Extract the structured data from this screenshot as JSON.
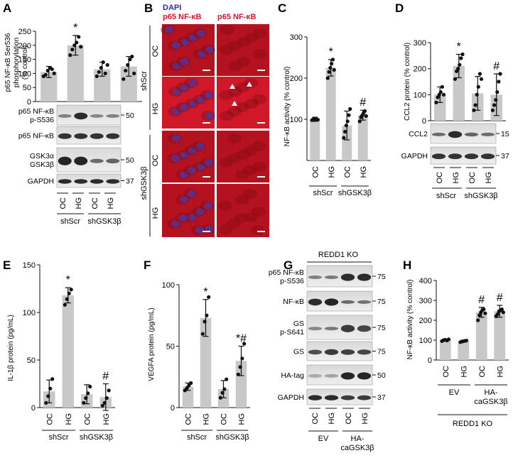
{
  "panels": {
    "A": {
      "letter": "A",
      "ylabel": [
        "p65 NF-κB Ser536",
        "phosphorylation",
        "(% control)"
      ],
      "yticks": [
        "0",
        "50",
        "100",
        "150",
        "200",
        "250"
      ],
      "star": "*",
      "chart_data": {
        "type": "bar",
        "categories": [
          "OC",
          "HG",
          "OC",
          "HG"
        ],
        "values": [
          105,
          200,
          115,
          125
        ],
        "errors": [
          20,
          35,
          25,
          35
        ],
        "ylim": [
          0,
          250
        ],
        "points": [
          [
            90,
            95,
            110,
            120,
            115,
            100
          ],
          [
            165,
            185,
            200,
            210,
            230,
            195
          ],
          [
            90,
            105,
            120,
            140,
            100,
            130
          ],
          [
            80,
            110,
            130,
            150,
            160,
            100
          ]
        ]
      },
      "blots": [
        {
          "label": [
            "p65 NF-κB",
            "p-S536"
          ],
          "mw": "50"
        },
        {
          "label": [
            "p65 NF-κB"
          ],
          "mw": ""
        },
        {
          "label": [
            "GSK3α",
            "GSK3β"
          ],
          "mw": "50"
        },
        {
          "label": [
            "GAPDH"
          ],
          "mw": "37"
        }
      ],
      "lanes": [
        "OC",
        "HG",
        "OC",
        "HG"
      ],
      "groups": [
        "shScr",
        "shGSK3β"
      ]
    },
    "B": {
      "letter": "B",
      "col1": [
        "DAPI",
        "p65 NF-κB"
      ],
      "col2": "p65 NF-κB",
      "rows": [
        "OC",
        "HG",
        "OC",
        "HG"
      ],
      "groups": [
        "shScr",
        "shGSK3β"
      ]
    },
    "C": {
      "letter": "C",
      "ylabel": "NF-κB activity  (% control)",
      "yticks": [
        "100",
        "200",
        "300"
      ],
      "star": "*",
      "hash": "#",
      "chart_data": {
        "type": "bar",
        "categories": [
          "OC",
          "HG",
          "OC",
          "HG"
        ],
        "values": [
          100,
          225,
          85,
          110
        ],
        "errors": [
          5,
          20,
          35,
          12
        ],
        "ylim": [
          0,
          300
        ],
        "points": [
          [
            98,
            100,
            102,
            100,
            99
          ],
          [
            200,
            215,
            225,
            235,
            245,
            220
          ],
          [
            55,
            70,
            85,
            95,
            110,
            125
          ],
          [
            95,
            105,
            110,
            115,
            120,
            108
          ]
        ]
      },
      "lanes": [
        "OC",
        "HG",
        "OC",
        "HG"
      ],
      "groups": [
        "shScr",
        "shGSK3β"
      ]
    },
    "D": {
      "letter": "D",
      "ylabel": "CCL2 protein (% control)",
      "yticks": [
        "0",
        "100",
        "200",
        "300"
      ],
      "star": "*",
      "hash": "#",
      "chart_data": {
        "type": "bar",
        "categories": [
          "OC",
          "HG",
          "OC",
          "HG"
        ],
        "values": [
          100,
          210,
          105,
          100
        ],
        "errors": [
          30,
          45,
          65,
          80
        ],
        "ylim": [
          0,
          300
        ],
        "points": [
          [
            70,
            90,
            100,
            110,
            130,
            100
          ],
          [
            160,
            190,
            200,
            215,
            240,
            255
          ],
          [
            40,
            60,
            100,
            130,
            180,
            160
          ],
          [
            40,
            60,
            80,
            110,
            150,
            180
          ]
        ]
      },
      "blots": [
        {
          "label": [
            "CCL2"
          ],
          "mw": "15"
        },
        {
          "label": [
            "GAPDH"
          ],
          "mw": "37"
        }
      ],
      "lanes": [
        "OC",
        "HG",
        "OC",
        "HG"
      ],
      "groups": [
        "shScr",
        "shGSK3β"
      ]
    },
    "E": {
      "letter": "E",
      "ylabel": "IL-1β protein (pg/mL)",
      "yticks": [
        "0",
        "50",
        "100",
        "150"
      ],
      "star": "*",
      "hash": "#",
      "chart_data": {
        "type": "bar",
        "categories": [
          "OC",
          "HG",
          "OC",
          "HG"
        ],
        "values": [
          17,
          118,
          14,
          11
        ],
        "errors": [
          12,
          8,
          10,
          14
        ],
        "ylim": [
          0,
          150
        ],
        "points": [
          [
            5,
            12,
            20,
            30
          ],
          [
            108,
            114,
            120,
            124
          ],
          [
            5,
            10,
            15,
            22
          ],
          [
            2,
            5,
            10,
            18
          ]
        ]
      },
      "lanes": [
        "OC",
        "HG",
        "OC",
        "HG"
      ],
      "groups": [
        "shScr",
        "shGSK3β"
      ]
    },
    "F": {
      "letter": "F",
      "ylabel": "VEGFA protein (pg/mL)",
      "yticks": [
        "0",
        "50",
        "100"
      ],
      "star": "*",
      "starhash": "*#",
      "chart_data": {
        "type": "bar",
        "categories": [
          "OC",
          "HG",
          "OC",
          "HG"
        ],
        "values": [
          17,
          73,
          15,
          38
        ],
        "errors": [
          3,
          15,
          7,
          12
        ],
        "ylim": [
          0,
          100
        ],
        "points": [
          [
            14,
            16,
            18,
            20
          ],
          [
            60,
            70,
            75,
            90
          ],
          [
            8,
            12,
            15,
            23
          ],
          [
            27,
            33,
            40,
            52
          ]
        ]
      },
      "lanes": [
        "OC",
        "HG",
        "OC",
        "HG"
      ],
      "groups": [
        "shScr",
        "shGSK3β"
      ]
    },
    "G": {
      "letter": "G",
      "header": "REDD1 KO",
      "blots": [
        {
          "label": [
            "p65 NF-κB",
            "p-S536"
          ],
          "mw": "75"
        },
        {
          "label": [
            "NF-κB"
          ],
          "mw": "75"
        },
        {
          "label": [
            "GS",
            "p-S641"
          ],
          "mw": "75"
        },
        {
          "label": [
            "GS"
          ],
          "mw": "75"
        },
        {
          "label": [
            "HA-tag"
          ],
          "mw": "50"
        },
        {
          "label": [
            "GAPDH"
          ],
          "mw": "37"
        }
      ],
      "lanes": [
        "OC",
        "HG",
        "OC",
        "HG"
      ],
      "groups": [
        "EV",
        "HA-",
        "caGSK3β"
      ]
    },
    "H": {
      "letter": "H",
      "ylabel": "NF-κB activity  (% control)",
      "yticks": [
        "0",
        "100",
        "200",
        "300",
        "400"
      ],
      "hash": "#",
      "chart_data": {
        "type": "bar",
        "categories": [
          "OC",
          "HG",
          "OC",
          "HG"
        ],
        "values": [
          100,
          95,
          240,
          245
        ],
        "errors": [
          5,
          5,
          25,
          30
        ],
        "ylim": [
          0,
          400
        ],
        "points": [
          [
            95,
            100,
            102,
            98,
            104
          ],
          [
            90,
            93,
            96,
            98
          ],
          [
            200,
            225,
            240,
            250,
            255,
            235
          ],
          [
            220,
            230,
            245,
            250,
            255,
            240
          ]
        ]
      },
      "lanes": [
        "OC",
        "HG",
        "OC",
        "HG"
      ],
      "groups": [
        "EV",
        "HA-",
        "caGSK3β"
      ],
      "footer": "REDD1 KO"
    }
  }
}
